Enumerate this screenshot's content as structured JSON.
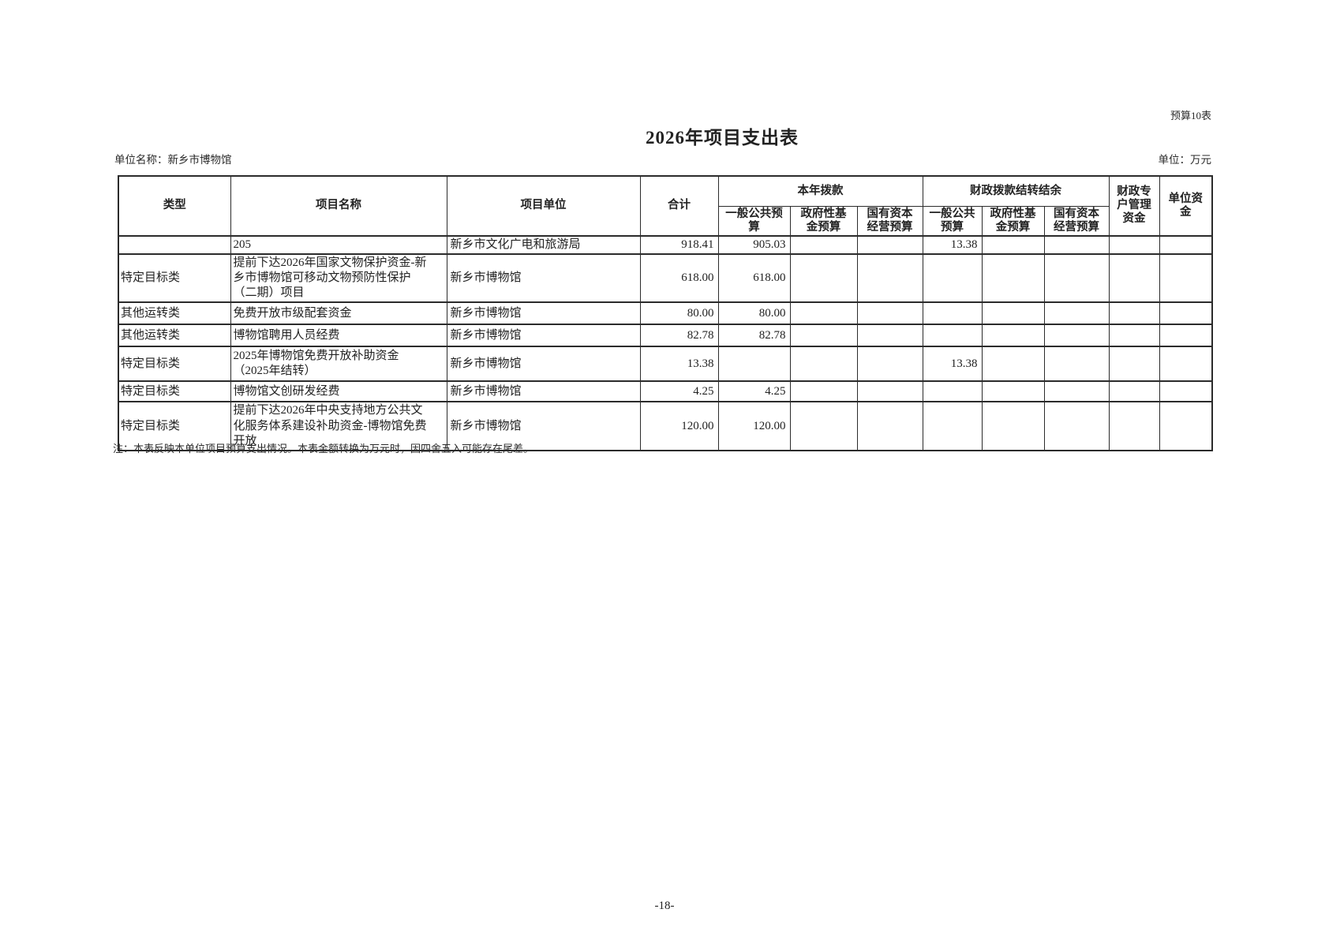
{
  "page": {
    "doc_label": "预算10表",
    "title": "2026年项目支出表",
    "unit_name_label": "单位名称：新乡市博物馆",
    "unit_label": "单位：万元",
    "note": "注：本表反映本单位项目预算支出情况。本表金额转换为万元时，因四舍五入可能存在尾差。",
    "page_number": "-18-"
  },
  "table": {
    "headers": {
      "type": "类型",
      "project_name": "项目名称",
      "project_unit": "项目单位",
      "total": "合计",
      "current_year_group": "本年拨款",
      "carryover_group": "财政拨款结转结余",
      "current_year_cols": [
        "一般公共预\n算",
        "政府性基\n金预算",
        "国有资本\n经营预算"
      ],
      "carryover_cols": [
        "一般公共\n预算",
        "政府性基\n金预算",
        "国有资本\n经营预算"
      ],
      "fiscal_special_account": "财政专\n户管理\n资金",
      "unit_funds": "单位资\n金"
    },
    "rows": [
      {
        "type": "",
        "name": "205",
        "unit": "新乡市文化广电和旅游局",
        "total": "918.41",
        "cy_general": "905.03",
        "cy_fund": "",
        "cy_state": "",
        "co_general": "13.38",
        "co_fund": "",
        "co_state": "",
        "special": "",
        "own": ""
      },
      {
        "type": "特定目标类",
        "name": "提前下达2026年国家文物保护资金-新\n乡市博物馆可移动文物预防性保护\n（二期）项目",
        "unit": "新乡市博物馆",
        "total": "618.00",
        "cy_general": "618.00",
        "cy_fund": "",
        "cy_state": "",
        "co_general": "",
        "co_fund": "",
        "co_state": "",
        "special": "",
        "own": ""
      },
      {
        "type": "其他运转类",
        "name": "免费开放市级配套资金",
        "unit": "新乡市博物馆",
        "total": "80.00",
        "cy_general": "80.00",
        "cy_fund": "",
        "cy_state": "",
        "co_general": "",
        "co_fund": "",
        "co_state": "",
        "special": "",
        "own": ""
      },
      {
        "type": "其他运转类",
        "name": "博物馆聘用人员经费",
        "unit": "新乡市博物馆",
        "total": "82.78",
        "cy_general": "82.78",
        "cy_fund": "",
        "cy_state": "",
        "co_general": "",
        "co_fund": "",
        "co_state": "",
        "special": "",
        "own": ""
      },
      {
        "type": "特定目标类",
        "name": "2025年博物馆免费开放补助资金\n（2025年结转）",
        "unit": "新乡市博物馆",
        "total": "13.38",
        "cy_general": "",
        "cy_fund": "",
        "cy_state": "",
        "co_general": "13.38",
        "co_fund": "",
        "co_state": "",
        "special": "",
        "own": ""
      },
      {
        "type": "特定目标类",
        "name": "博物馆文创研发经费",
        "unit": "新乡市博物馆",
        "total": "4.25",
        "cy_general": "4.25",
        "cy_fund": "",
        "cy_state": "",
        "co_general": "",
        "co_fund": "",
        "co_state": "",
        "special": "",
        "own": ""
      },
      {
        "type": "特定目标类",
        "name": "提前下达2026年中央支持地方公共文\n化服务体系建设补助资金-博物馆免费\n开放",
        "unit": "新乡市博物馆",
        "total": "120.00",
        "cy_general": "120.00",
        "cy_fund": "",
        "cy_state": "",
        "co_general": "",
        "co_fund": "",
        "co_state": "",
        "special": "",
        "own": ""
      }
    ]
  }
}
